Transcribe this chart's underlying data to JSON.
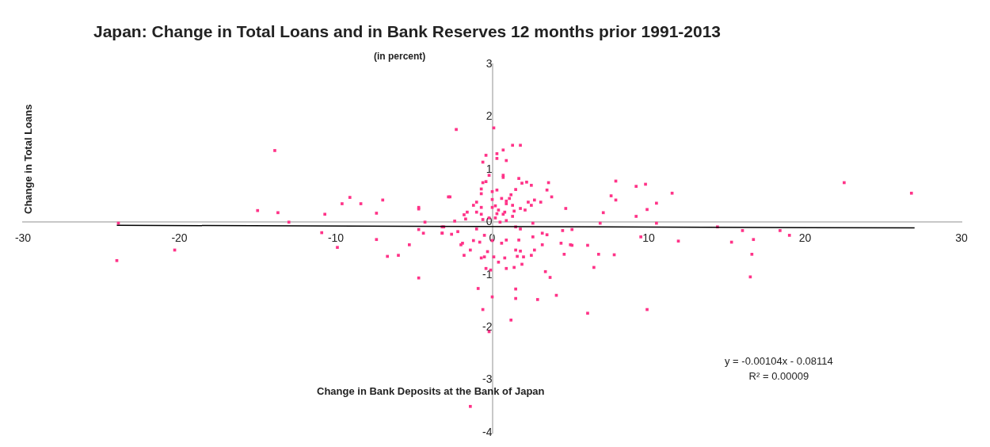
{
  "chart_data": {
    "type": "scatter",
    "title": "Japan: Change in Total Loans and in Bank Reserves 12 months prior 1991-2013",
    "subtitle": "(in percent)",
    "xlabel": "Change in Bank Deposits at the Bank of Japan",
    "ylabel": "Change in Total Loans",
    "annotations": [
      "y = -0.00104x - 0.08114\nR² = 0.00009"
    ],
    "xlim": [
      -30,
      30
    ],
    "xticks": [
      -30,
      -20,
      -10,
      0,
      10,
      20,
      30
    ],
    "ylim": [
      -4,
      3
    ],
    "yticks": [
      -4,
      -3,
      -2,
      -1,
      0,
      1,
      2,
      3
    ],
    "grid": false,
    "legend": false,
    "marker": "square",
    "series": [
      {
        "color": "#ff3388",
        "x": [
          -23.9,
          -24.0,
          -20.3,
          -13.9,
          -15.0,
          -13.7,
          -13.0,
          -10.9,
          -10.7,
          -9.9,
          -9.6,
          -9.1,
          -8.4,
          -7.4,
          -7.0,
          -7.4,
          -6.7,
          -6.0,
          -5.3,
          -4.7,
          -4.7,
          -4.3,
          -4.7,
          -4.4,
          -4.7,
          -3.2,
          -3.2,
          -2.8,
          -2.3,
          0.1,
          1.3,
          1.8,
          0.7,
          0.3,
          -0.4,
          0.3,
          0.9,
          -0.6,
          -0.2,
          0.7,
          0.7,
          1.7,
          2.2,
          1.9,
          2.5,
          3.6,
          3.5,
          3.8,
          -0.6,
          -0.4,
          -0.7,
          0.3,
          0,
          1.5,
          -2.7,
          -0.7,
          1.2,
          1.1,
          0.6,
          0.9,
          0.9,
          2.7,
          3.1,
          2.3,
          2.5,
          4.7,
          0,
          -1.0,
          -1.2,
          -0.7,
          0,
          0.2,
          1.3,
          1.8,
          2.1,
          0.4,
          0.8,
          0.3,
          0.7,
          1.4,
          -1.6,
          -1.8,
          -1.0,
          -0.7,
          -1.7,
          -2.4,
          -0.6,
          -0.2,
          0.2,
          1.3,
          0.9,
          0.5,
          2.6,
          -3.1,
          -3.2,
          -2.6,
          -2.2,
          -1.0,
          1.5,
          1.8,
          3.2,
          3.5,
          4.5,
          5.1,
          -1.9,
          -1.2,
          -0.5,
          0,
          0.9,
          1.7,
          2.6,
          -2.0,
          -1.4,
          -0.8,
          -0.3,
          -1.8,
          -0.7,
          -0.5,
          0.1,
          0.4,
          0.8,
          1.6,
          2.0,
          2.5,
          2.7,
          1.5,
          1.8,
          4.6,
          5.0,
          4.4,
          3.2,
          0.6,
          -0.4,
          -0.1,
          0.9,
          1.4,
          1.9,
          3.4,
          3.7,
          -0.9,
          1.5,
          0,
          1.5,
          2.9,
          4.1,
          -0.6,
          1.2,
          -0.2,
          -1.4,
          7.9,
          9.2,
          9.8,
          7.6,
          7.9,
          7.1,
          6.9,
          9.2,
          9.9,
          10.5,
          10.5,
          11.5,
          22.5,
          26.8,
          5.1,
          6.1,
          6.8,
          7.8,
          6.5,
          6.1,
          9.9,
          9.5,
          11.9,
          14.4,
          15.3,
          16.0,
          16.7,
          16.6,
          16.5,
          18.4,
          19.0
        ],
        "values": [
          -0.02,
          -0.73,
          -0.53,
          1.36,
          0.22,
          0.18,
          0.0,
          -0.2,
          0.15,
          -0.48,
          0.35,
          0.47,
          0.35,
          0.17,
          0.42,
          -0.33,
          -0.65,
          -0.63,
          -0.43,
          0.28,
          0.25,
          0.0,
          -0.14,
          -0.21,
          -1.06,
          -0.21,
          -0.09,
          0.48,
          1.76,
          1.79,
          1.46,
          1.46,
          1.37,
          1.3,
          1.27,
          1.21,
          1.17,
          1.14,
          0.89,
          0.89,
          0.85,
          0.83,
          0.76,
          0.74,
          0.7,
          0.75,
          0.61,
          0.48,
          0.75,
          0.77,
          0.63,
          0.61,
          0.58,
          0.62,
          0.48,
          0.54,
          0.52,
          0.45,
          0.45,
          0.4,
          0.35,
          0.42,
          0.38,
          0.38,
          0.32,
          0.26,
          0.43,
          0.38,
          0.32,
          0.28,
          0.28,
          0.31,
          0.32,
          0.26,
          0.23,
          0.23,
          0.19,
          0.16,
          0.15,
          0.21,
          0.19,
          0.14,
          0.19,
          0.15,
          0.06,
          0.02,
          0.05,
          0.08,
          0.08,
          0.11,
          0.03,
          0,
          -0.02,
          -0.09,
          -0.21,
          -0.23,
          -0.18,
          -0.13,
          -0.09,
          -0.13,
          -0.21,
          -0.24,
          -0.16,
          -0.14,
          -0.4,
          -0.35,
          -0.25,
          -0.35,
          -0.34,
          -0.34,
          -0.28,
          -0.43,
          -0.53,
          -0.38,
          -0.56,
          -0.63,
          -0.68,
          -0.66,
          -0.66,
          -0.76,
          -0.68,
          -0.65,
          -0.66,
          -0.63,
          -0.53,
          -0.53,
          -0.55,
          -0.61,
          -0.43,
          -0.4,
          -0.43,
          -0.4,
          -0.88,
          -0.91,
          -0.88,
          -0.86,
          -0.8,
          -0.94,
          -1.05,
          -1.26,
          -1.27,
          -1.42,
          -1.45,
          -1.47,
          -1.39,
          -1.66,
          -1.86,
          -2.08,
          -3.5,
          0.78,
          0.68,
          0.72,
          0.5,
          0.42,
          0.18,
          -0.02,
          0.11,
          0.24,
          0.36,
          -0.02,
          0.55,
          0.75,
          0.55,
          -0.44,
          -0.44,
          -0.61,
          -0.62,
          -0.86,
          -1.73,
          -1.66,
          -0.28,
          -0.36,
          -0.09,
          -0.38,
          -0.16,
          -0.33,
          -0.61,
          -1.04,
          -0.16,
          -0.25
        ]
      },
      {
        "type": "line",
        "color": "#000000",
        "marker": "none",
        "x": [
          -24,
          27
        ],
        "values": [
          -0.06,
          -0.11
        ]
      }
    ]
  }
}
